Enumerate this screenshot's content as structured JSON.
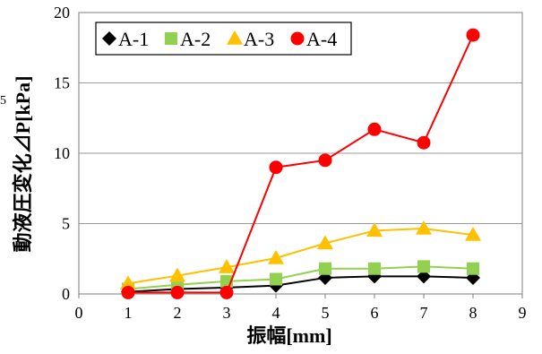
{
  "chart_data": {
    "type": "line",
    "xlabel": "振幅[mm]",
    "ylabel": "動液圧変化⊿P[kPa]",
    "xlim": [
      0,
      9
    ],
    "ylim": [
      0,
      20
    ],
    "xticks": [
      "0",
      "1",
      "2",
      "3",
      "4",
      "5",
      "6",
      "7",
      "8",
      "9"
    ],
    "yticks": [
      "0",
      "5",
      "10",
      "15",
      "20"
    ],
    "grid": "horizontal",
    "legend": "top-left",
    "stray_label": "5",
    "series": [
      {
        "name": "A-1",
        "color": "#000000",
        "marker": "diamond",
        "x": [
          1,
          2,
          3,
          4,
          5,
          6,
          7,
          8
        ],
        "y": [
          0.15,
          0.35,
          0.45,
          0.6,
          1.15,
          1.25,
          1.25,
          1.15
        ]
      },
      {
        "name": "A-2",
        "color": "#92D050",
        "marker": "square",
        "x": [
          1,
          2,
          3,
          4,
          5,
          6,
          7,
          8
        ],
        "y": [
          0.35,
          0.65,
          0.9,
          1.05,
          1.8,
          1.8,
          1.95,
          1.8
        ]
      },
      {
        "name": "A-3",
        "color": "#FFC000",
        "marker": "triangle",
        "x": [
          1,
          2,
          3,
          4,
          5,
          6,
          7,
          8
        ],
        "y": [
          0.75,
          1.3,
          1.9,
          2.55,
          3.6,
          4.5,
          4.65,
          4.2
        ]
      },
      {
        "name": "A-4",
        "color": "#FF0000",
        "marker": "circle",
        "x": [
          1,
          2,
          3,
          4,
          5,
          6,
          7,
          8
        ],
        "y": [
          0.1,
          0.1,
          0.1,
          9.0,
          9.5,
          11.7,
          10.75,
          18.4
        ]
      }
    ]
  }
}
